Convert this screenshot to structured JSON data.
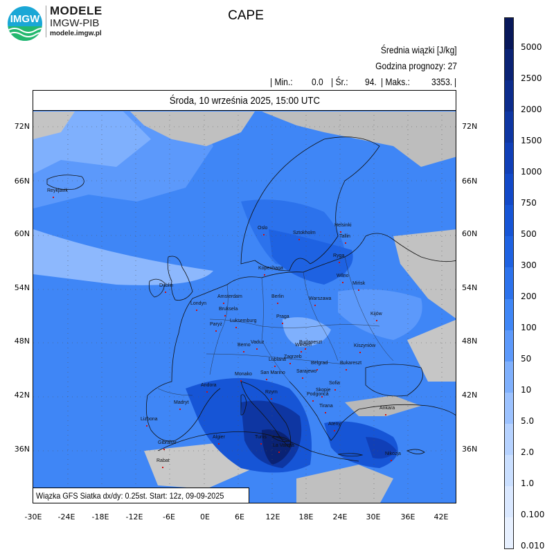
{
  "header": {
    "logo_text": "IMGW",
    "brand_line1": "MODELE",
    "brand_line2": "IMGW-PIB",
    "brand_url": "modele.imgw.pl",
    "title": "CAPE",
    "unit_line": "Średnia wiązki [J/kg]",
    "forecast_hour": "Godzina prognozy: 27",
    "stats": {
      "min_label": "| Min.:",
      "min_value": "0.0",
      "mean_label": "| Śr.:",
      "mean_value": "94.",
      "max_label": "| Maks.:",
      "max_value": "3353.",
      "end": "|"
    },
    "date": "Środa, 10 września 2025, 15:00 UTC"
  },
  "map": {
    "lat_labels": [
      "72N",
      "66N",
      "60N",
      "54N",
      "48N",
      "42N",
      "36N"
    ],
    "lon_labels": [
      "-30E",
      "-24E",
      "-18E",
      "-12E",
      "-6E",
      "0E",
      "6E",
      "12E",
      "18E",
      "24E",
      "30E",
      "36E",
      "42E"
    ],
    "info": "Wiązka GFS Siatka dx/dy: 0.25st. Start: 12z, 09-09-2025",
    "colors": {
      "land_low": "#b9b9b9",
      "light": "#cfe0ff",
      "med": "#5a96ff",
      "bright": "#2f7cf6",
      "deep": "#1a4fd6",
      "darkest": "#0b2a8f"
    },
    "cities": [
      {
        "name": "Reykjavik"
      },
      {
        "name": "Oslo"
      },
      {
        "name": "Sztokholm"
      },
      {
        "name": "Helsinki"
      },
      {
        "name": "Tallin"
      },
      {
        "name": "Ryga"
      },
      {
        "name": "Kopenhaga"
      },
      {
        "name": "Wilno"
      },
      {
        "name": "Mińsk"
      },
      {
        "name": "Dublin"
      },
      {
        "name": "Londyn"
      },
      {
        "name": "Amsterdam"
      },
      {
        "name": "Berlin"
      },
      {
        "name": "Warszawa"
      },
      {
        "name": "Bruksela"
      },
      {
        "name": "Luksemburg"
      },
      {
        "name": "Praga"
      },
      {
        "name": "Kijów"
      },
      {
        "name": "Paryż"
      },
      {
        "name": "Berno"
      },
      {
        "name": "Wiedeń"
      },
      {
        "name": "Vaduz"
      },
      {
        "name": "Budapeszt"
      },
      {
        "name": "Kiszyniów"
      },
      {
        "name": "Zagrzeb"
      },
      {
        "name": "Lublana"
      },
      {
        "name": "Belgrad"
      },
      {
        "name": "Bukareszt"
      },
      {
        "name": "Monako"
      },
      {
        "name": "San Marino"
      },
      {
        "name": "Sarajewo"
      },
      {
        "name": "Podgorica"
      },
      {
        "name": "Sofia"
      },
      {
        "name": "Skopje"
      },
      {
        "name": "Andora"
      },
      {
        "name": "Rzym"
      },
      {
        "name": "Tirana"
      },
      {
        "name": "Madryt"
      },
      {
        "name": "Ankara"
      },
      {
        "name": "Lizbona"
      },
      {
        "name": "Ateny"
      },
      {
        "name": "Algier"
      },
      {
        "name": "Tunis"
      },
      {
        "name": "Gibraltar"
      },
      {
        "name": "La Valetta"
      },
      {
        "name": "Nikozja"
      },
      {
        "name": "Rabat"
      }
    ]
  },
  "legend": {
    "labels": [
      "5000",
      "2500",
      "2000",
      "1500",
      "1000",
      "750",
      "500",
      "300",
      "200",
      "100",
      "50",
      "10",
      "5.0",
      "2.0",
      "1.0",
      "0.100",
      "0.010"
    ],
    "colors": [
      "#08185a",
      "#0a2274",
      "#0c2c8c",
      "#0e36a2",
      "#103fb7",
      "#1249c8",
      "#1655d6",
      "#1e62e2",
      "#2c72ec",
      "#3f86f6",
      "#5c99fb",
      "#7fb0fd",
      "#9cc2ff",
      "#b6d2ff",
      "#cadfff",
      "#dae8ff",
      "#e7f0ff"
    ]
  }
}
